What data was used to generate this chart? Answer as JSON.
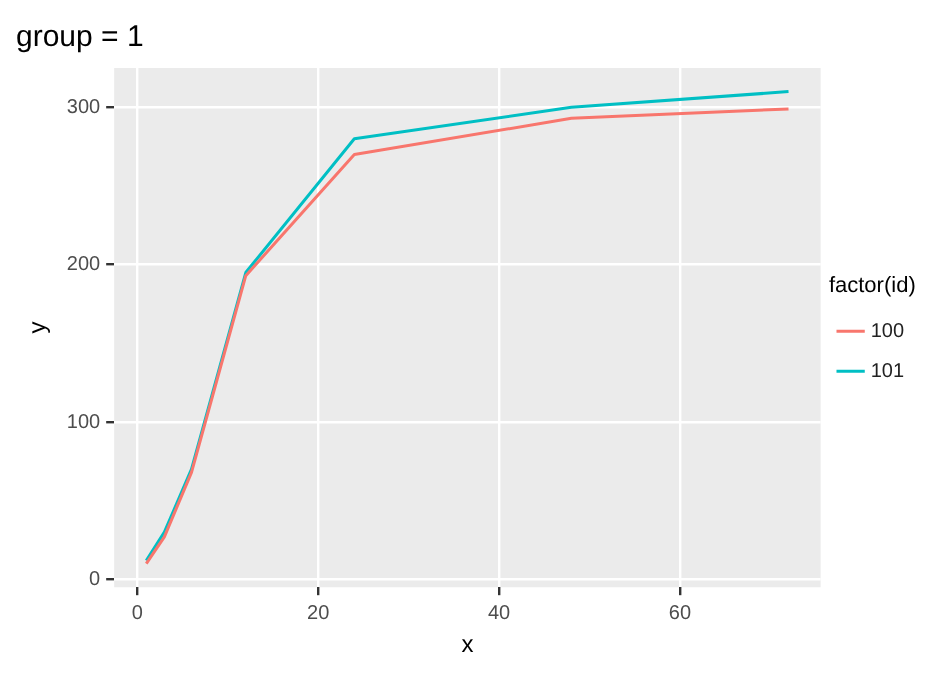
{
  "chart_data": {
    "type": "line",
    "title": "group = 1",
    "xlabel": "x",
    "ylabel": "y",
    "legend_title": "factor(id)",
    "x": [
      1,
      3,
      6,
      12,
      24,
      48,
      72
    ],
    "series": [
      {
        "name": "100",
        "color": "#f8766d",
        "values": [
          10,
          27,
          68,
          193,
          270,
          293,
          299
        ]
      },
      {
        "name": "101",
        "color": "#00bfc4",
        "values": [
          12,
          30,
          70,
          195,
          280,
          300,
          310
        ]
      }
    ],
    "xlim": [
      -2.55,
      75.55
    ],
    "xticks": [
      0,
      20,
      40,
      60
    ],
    "ylim": [
      -5,
      325
    ],
    "yticks": [
      0,
      100,
      200,
      300
    ],
    "grid": true,
    "legend": "right",
    "marker": "none",
    "line_style": "solid"
  }
}
